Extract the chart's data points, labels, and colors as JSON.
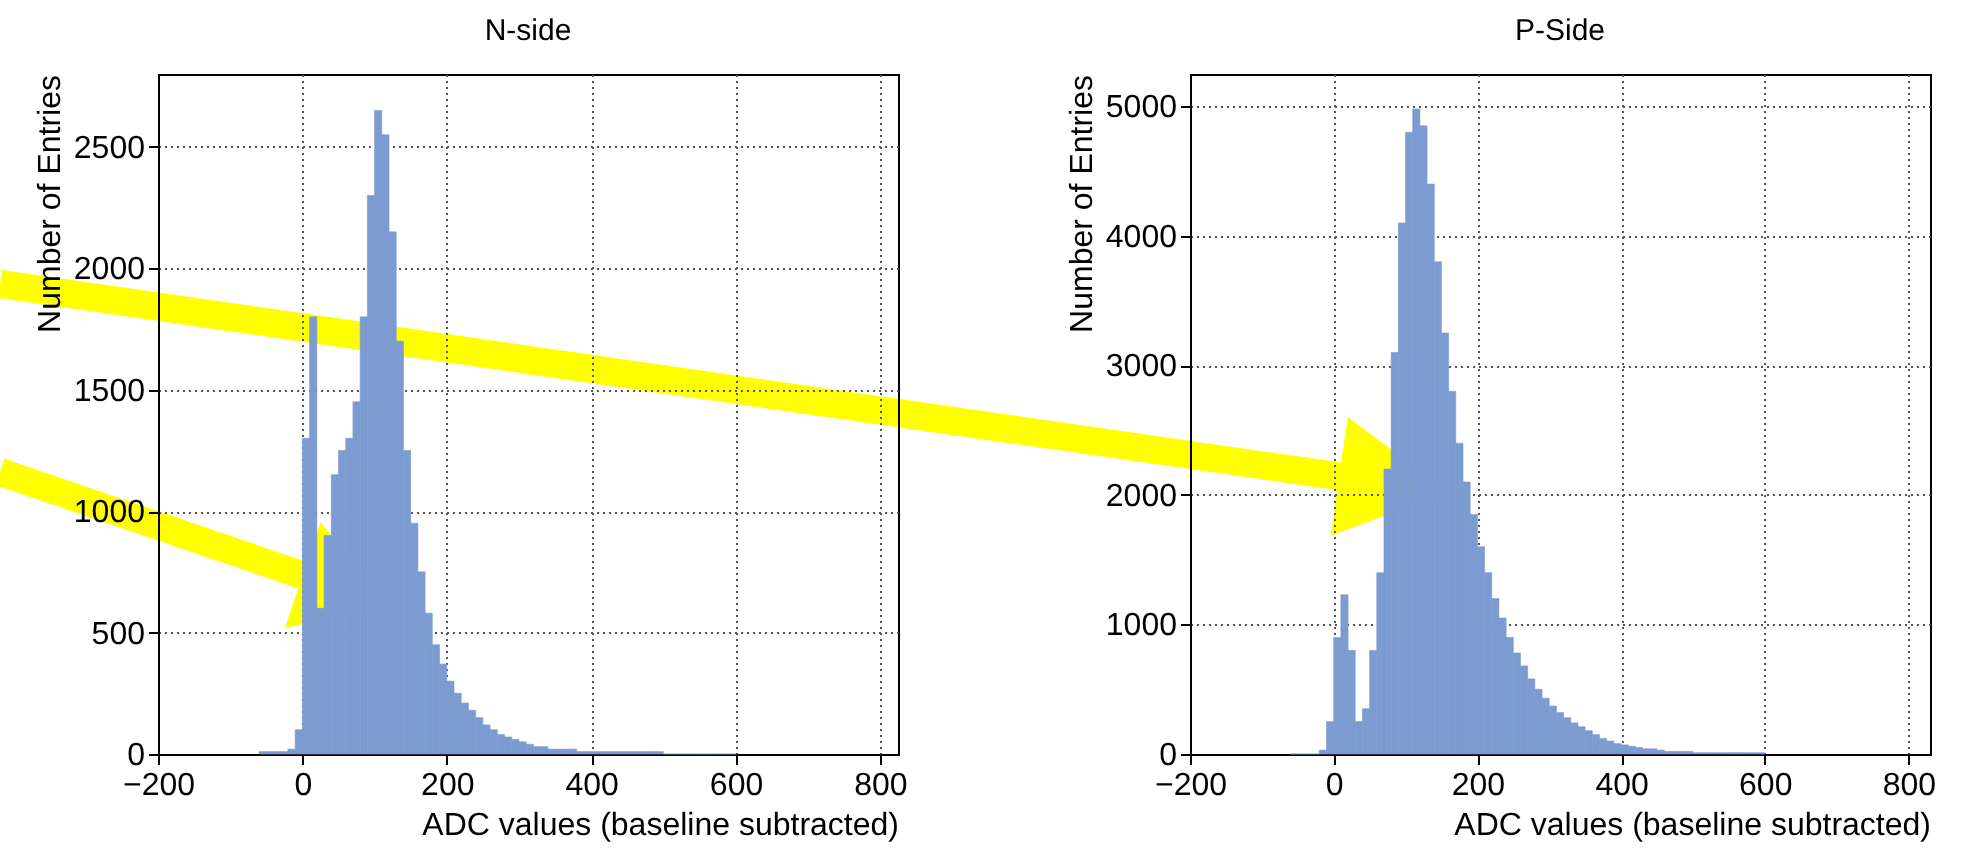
{
  "chart_data": [
    {
      "type": "histogram",
      "title": "N-side",
      "xlabel": "ADC values (baseline subtracted)",
      "ylabel": "Number of Entries",
      "color": "#7b9bd1",
      "xlim": [
        -200,
        825
      ],
      "ylim": [
        0,
        2800
      ],
      "xticks": [
        -200,
        0,
        200,
        400,
        600,
        800
      ],
      "yticks": [
        0,
        500,
        1000,
        1500,
        2000,
        2500
      ],
      "grid": true,
      "bins": [
        -60,
        -50,
        -40,
        -30,
        -20,
        -10,
        0,
        10,
        20,
        30,
        40,
        50,
        60,
        70,
        80,
        90,
        100,
        110,
        120,
        130,
        140,
        150,
        160,
        170,
        180,
        190,
        200,
        210,
        220,
        230,
        240,
        250,
        260,
        270,
        280,
        290,
        300,
        310,
        320,
        330,
        340,
        350,
        360,
        370,
        380,
        390,
        400,
        410,
        420,
        430,
        440,
        450,
        460,
        470,
        480,
        490,
        500,
        510,
        520,
        530,
        540,
        550,
        560,
        570,
        580,
        590,
        600
      ],
      "values": [
        10,
        10,
        10,
        10,
        20,
        100,
        1300,
        1800,
        600,
        900,
        1150,
        1250,
        1300,
        1450,
        1800,
        2300,
        2650,
        2550,
        2150,
        1700,
        1250,
        950,
        750,
        580,
        450,
        370,
        300,
        250,
        210,
        180,
        150,
        120,
        100,
        80,
        70,
        60,
        50,
        40,
        30,
        30,
        20,
        20,
        20,
        20,
        10,
        10,
        10,
        10,
        10,
        10,
        10,
        10,
        10,
        10,
        10,
        10,
        0,
        0,
        0,
        0,
        0,
        0,
        0,
        0,
        0,
        0
      ]
    },
    {
      "type": "histogram",
      "title": "P-Side",
      "xlabel": "ADC values (baseline subtracted)",
      "ylabel": "Number of Entries",
      "color": "#7b9bd1",
      "xlim": [
        -200,
        830
      ],
      "ylim": [
        0,
        5250
      ],
      "xticks": [
        -200,
        0,
        200,
        400,
        600,
        800
      ],
      "yticks": [
        0,
        1000,
        2000,
        3000,
        4000,
        5000
      ],
      "grid": true,
      "bins": [
        -60,
        -50,
        -40,
        -30,
        -20,
        -10,
        0,
        10,
        20,
        30,
        40,
        50,
        60,
        70,
        80,
        90,
        100,
        110,
        120,
        130,
        140,
        150,
        160,
        170,
        180,
        190,
        200,
        210,
        220,
        230,
        240,
        250,
        260,
        270,
        280,
        290,
        300,
        310,
        320,
        330,
        340,
        350,
        360,
        370,
        380,
        390,
        400,
        410,
        420,
        430,
        440,
        450,
        460,
        470,
        480,
        490,
        500,
        510,
        520,
        530,
        540,
        550,
        560,
        570,
        580,
        590,
        600
      ],
      "values": [
        0,
        0,
        0,
        0,
        30,
        250,
        900,
        1230,
        800,
        250,
        350,
        800,
        1400,
        2200,
        3100,
        4100,
        4800,
        4980,
        4850,
        4400,
        3800,
        3250,
        2800,
        2400,
        2100,
        1850,
        1600,
        1400,
        1200,
        1050,
        900,
        780,
        680,
        580,
        500,
        430,
        370,
        320,
        280,
        240,
        210,
        180,
        150,
        120,
        100,
        80,
        70,
        60,
        50,
        40,
        40,
        30,
        20,
        20,
        20,
        20,
        10,
        10,
        10,
        10,
        10,
        10,
        10,
        10,
        10,
        10
      ]
    }
  ]
}
